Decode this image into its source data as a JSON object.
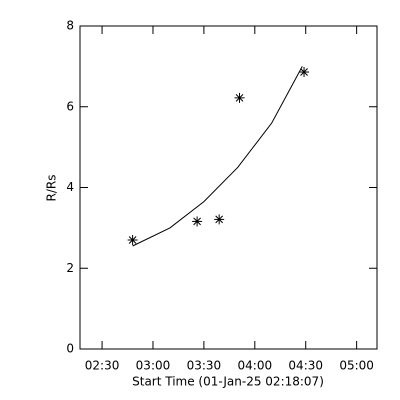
{
  "chart_data": {
    "type": "scatter",
    "xlabel": "Start Time (01-Jan-25 02:18:07)",
    "ylabel": "R/Rs",
    "xlim": [
      "02:17",
      "05:12"
    ],
    "xticks": [
      "02:30",
      "03:00",
      "03:30",
      "04:00",
      "04:30",
      "05:00"
    ],
    "ylim": [
      0,
      8
    ],
    "yticks": [
      0,
      2,
      4,
      6,
      8
    ],
    "series": [
      {
        "mode": "markers",
        "color": "#000000",
        "x": [
          "02:48",
          "03:26",
          "03:39",
          "03:51",
          "04:29"
        ],
        "values": [
          2.7,
          3.16,
          3.21,
          6.22,
          6.86
        ]
      },
      {
        "mode": "line",
        "color": "#000000",
        "x": [
          "02:48",
          "03:10",
          "03:30",
          "03:50",
          "04:10",
          "04:28"
        ],
        "values": [
          2.55,
          3.0,
          3.65,
          4.5,
          5.6,
          7.0
        ]
      }
    ]
  }
}
